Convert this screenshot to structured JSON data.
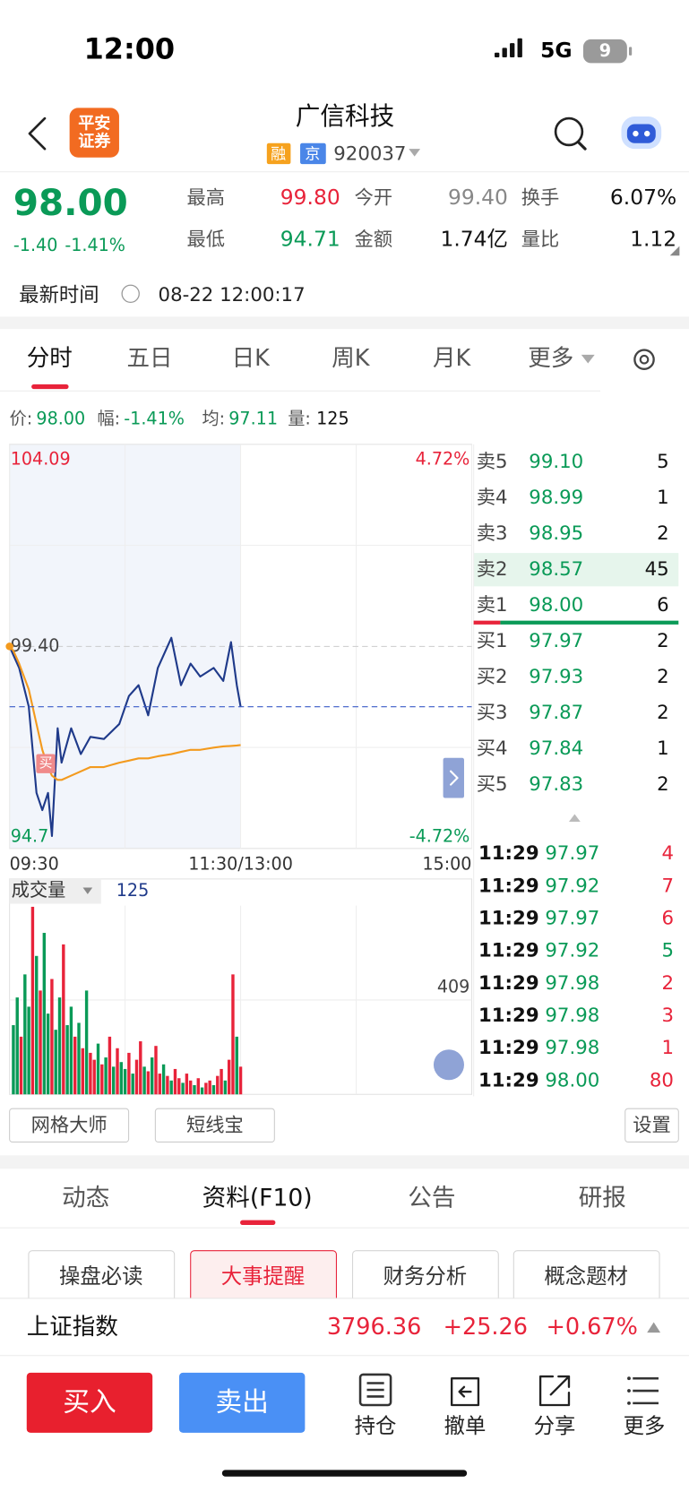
{
  "status_bar": {
    "time": "12:00",
    "network": "5G",
    "battery": "9"
  },
  "header": {
    "broker_logo": [
      "平安",
      "证券"
    ],
    "title": "广信科技",
    "tags": [
      "融",
      "京"
    ],
    "code": "920037"
  },
  "quote": {
    "price": "98.00",
    "change": "-1.40",
    "change_pct": "-1.41%",
    "stats": [
      {
        "label": "最高",
        "value": "99.80",
        "color": "#e8233a"
      },
      {
        "label": "今开",
        "value": "99.40",
        "color": "#888888"
      },
      {
        "label": "换手",
        "value": "6.07%",
        "color": "#111111"
      },
      {
        "label": "最低",
        "value": "94.71",
        "color": "#0a9a57"
      },
      {
        "label": "金额",
        "value": "1.74亿",
        "color": "#111111"
      },
      {
        "label": "量比",
        "value": "1.12",
        "color": "#111111"
      }
    ],
    "time_label": "最新时间",
    "time": "08-22 12:00:17"
  },
  "tabs": [
    "分时",
    "五日",
    "日K",
    "周K",
    "月K",
    "更多"
  ],
  "info_line": [
    {
      "label": "价:",
      "value": "98.00"
    },
    {
      "label": "幅:",
      "value": "-1.41%"
    },
    {
      "label": "均:",
      "value": "97.11"
    },
    {
      "label": "量:",
      "value": "125"
    }
  ],
  "chart_data": [
    {
      "type": "line",
      "x": [
        0,
        2,
        5,
        10,
        14,
        17,
        20,
        22,
        25,
        27,
        32,
        37,
        42,
        49,
        57,
        62,
        67,
        72,
        77,
        84,
        89,
        94,
        99,
        106,
        111,
        115,
        118,
        120
      ],
      "series": [
        {
          "color": "#1f3a8a",
          "values": [
            99.4,
            99.2,
            98.9,
            98.0,
            96.0,
            95.6,
            96.0,
            95.0,
            97.5,
            96.7,
            97.5,
            96.9,
            97.3,
            97.25,
            97.6,
            98.25,
            98.5,
            97.8,
            98.9,
            99.6,
            98.5,
            99.0,
            98.7,
            98.9,
            98.6,
            99.5,
            98.5,
            98.0
          ]
        },
        {
          "color": "#f39a1e",
          "values": [
            99.4,
            99.3,
            99.0,
            98.4,
            97.6,
            97.0,
            96.6,
            96.4,
            96.3,
            96.3,
            96.4,
            96.5,
            96.6,
            96.6,
            96.7,
            96.75,
            96.8,
            96.8,
            96.85,
            96.9,
            96.95,
            97.0,
            97.0,
            97.05,
            97.08,
            97.09,
            97.1,
            97.11
          ]
        }
      ],
      "xlim": [
        0,
        240
      ],
      "xticks": [
        {
          "value": 0,
          "label": "09:30"
        },
        {
          "value": 120,
          "label": "11:30/13:00"
        },
        {
          "value": 240,
          "label": "15:00"
        }
      ],
      "ylim": [
        94.71,
        104.09
      ],
      "yticks": [
        104.09,
        {
          "value": 99.4,
          "label": "99.40"
        },
        {
          "value": 94.71,
          "label": "94.7"
        }
      ],
      "y2lim": [
        -4.72,
        4.72
      ],
      "y2ticks": [
        {
          "value": 4.72,
          "label": "4.72%"
        },
        {
          "value": -4.72,
          "label": "-4.72%"
        }
      ],
      "annotations": [
        "买"
      ],
      "grid": true
    },
    {
      "type": "bar",
      "title": "成交量",
      "subtitle": "125",
      "x": [
        2,
        4,
        6,
        8,
        10,
        12,
        14,
        16,
        18,
        20,
        22,
        24,
        26,
        28,
        30,
        32,
        34,
        36,
        38,
        40,
        42,
        44,
        46,
        48,
        50,
        52,
        54,
        56,
        58,
        60,
        62,
        64,
        66,
        68,
        70,
        72,
        74,
        76,
        78,
        80,
        82,
        84,
        86,
        88,
        90,
        92,
        94,
        96,
        98,
        100,
        102,
        104,
        106,
        108,
        110,
        112,
        114,
        116,
        118,
        120
      ],
      "values": [
        300,
        420,
        250,
        520,
        380,
        813,
        600,
        450,
        700,
        350,
        500,
        280,
        420,
        650,
        300,
        380,
        250,
        310,
        200,
        450,
        180,
        150,
        220,
        130,
        160,
        250,
        120,
        200,
        140,
        110,
        180,
        90,
        150,
        230,
        120,
        100,
        160,
        210,
        90,
        130,
        80,
        60,
        110,
        70,
        50,
        90,
        60,
        40,
        70,
        30,
        50,
        60,
        40,
        80,
        110,
        60,
        150,
        520,
        250,
        120
      ],
      "colors": [
        "#0a9a57",
        "#0a9a57",
        "#e8233a",
        "#0a9a57",
        "#0a9a57",
        "#e8233a",
        "#0a9a57",
        "#e8233a",
        "#0a9a57",
        "#0a9a57",
        "#e8233a",
        "#0a9a57",
        "#0a9a57",
        "#e8233a",
        "#0a9a57",
        "#0a9a57",
        "#e8233a",
        "#0a9a57",
        "#e8233a",
        "#0a9a57",
        "#e8233a",
        "#e8233a",
        "#0a9a57",
        "#e8233a",
        "#0a9a57",
        "#e8233a",
        "#0a9a57",
        "#e8233a",
        "#0a9a57",
        "#0a9a57",
        "#e8233a",
        "#0a9a57",
        "#e8233a",
        "#e8233a",
        "#0a9a57",
        "#e8233a",
        "#0a9a57",
        "#e8233a",
        "#e8233a",
        "#0a9a57",
        "#e8233a",
        "#0a9a57",
        "#e8233a",
        "#e8233a",
        "#0a9a57",
        "#e8233a",
        "#e8233a",
        "#0a9a57",
        "#e8233a",
        "#0a9a57",
        "#e8233a",
        "#e8233a",
        "#0a9a57",
        "#e8233a",
        "#e8233a",
        "#0a9a57",
        "#e8233a",
        "#e8233a",
        "#0a9a57",
        "#e8233a"
      ],
      "xlim": [
        0,
        240
      ],
      "ylim": [
        0,
        818
      ],
      "yticks": [
        409
      ]
    }
  ],
  "order_book": {
    "asks": [
      {
        "label": "卖5",
        "price": "99.10",
        "volume": "5"
      },
      {
        "label": "卖4",
        "price": "98.99",
        "volume": "1"
      },
      {
        "label": "卖3",
        "price": "98.95",
        "volume": "2"
      },
      {
        "label": "卖2",
        "price": "98.57",
        "volume": "45"
      },
      {
        "label": "卖1",
        "price": "98.00",
        "volume": "6"
      }
    ],
    "bids": [
      {
        "label": "买1",
        "price": "97.97",
        "volume": "2"
      },
      {
        "label": "买2",
        "price": "97.93",
        "volume": "2"
      },
      {
        "label": "买3",
        "price": "97.87",
        "volume": "2"
      },
      {
        "label": "买4",
        "price": "97.84",
        "volume": "1"
      },
      {
        "label": "买5",
        "price": "97.83",
        "volume": "2"
      }
    ]
  },
  "trades": [
    {
      "time": "11:29",
      "price": "97.97",
      "volume": "4",
      "color": "#e8233a"
    },
    {
      "time": "11:29",
      "price": "97.92",
      "volume": "7",
      "color": "#e8233a"
    },
    {
      "time": "11:29",
      "price": "97.97",
      "volume": "6",
      "color": "#e8233a"
    },
    {
      "time": "11:29",
      "price": "97.92",
      "volume": "5",
      "color": "#0a9a57"
    },
    {
      "time": "11:29",
      "price": "97.98",
      "volume": "2",
      "color": "#e8233a"
    },
    {
      "time": "11:29",
      "price": "97.98",
      "volume": "3",
      "color": "#e8233a"
    },
    {
      "time": "11:29",
      "price": "97.98",
      "volume": "1",
      "color": "#e8233a"
    },
    {
      "time": "11:29",
      "price": "98.00",
      "volume": "80",
      "color": "#e8233a"
    }
  ],
  "tools": [
    "网格大师",
    "短线宝",
    "设置"
  ],
  "section_tabs": [
    "动态",
    "资料(F10)",
    "公告",
    "研报"
  ],
  "sub_buttons": [
    "操盘必读",
    "大事提醒",
    "财务分析",
    "概念题材"
  ],
  "index_bar": {
    "name": "上证指数",
    "value": "3796.36",
    "change": "+25.26",
    "change_pct": "+0.67%"
  },
  "actions": {
    "buy": "买入",
    "sell": "卖出",
    "items": [
      "持仓",
      "撤单",
      "分享",
      "更多"
    ]
  }
}
